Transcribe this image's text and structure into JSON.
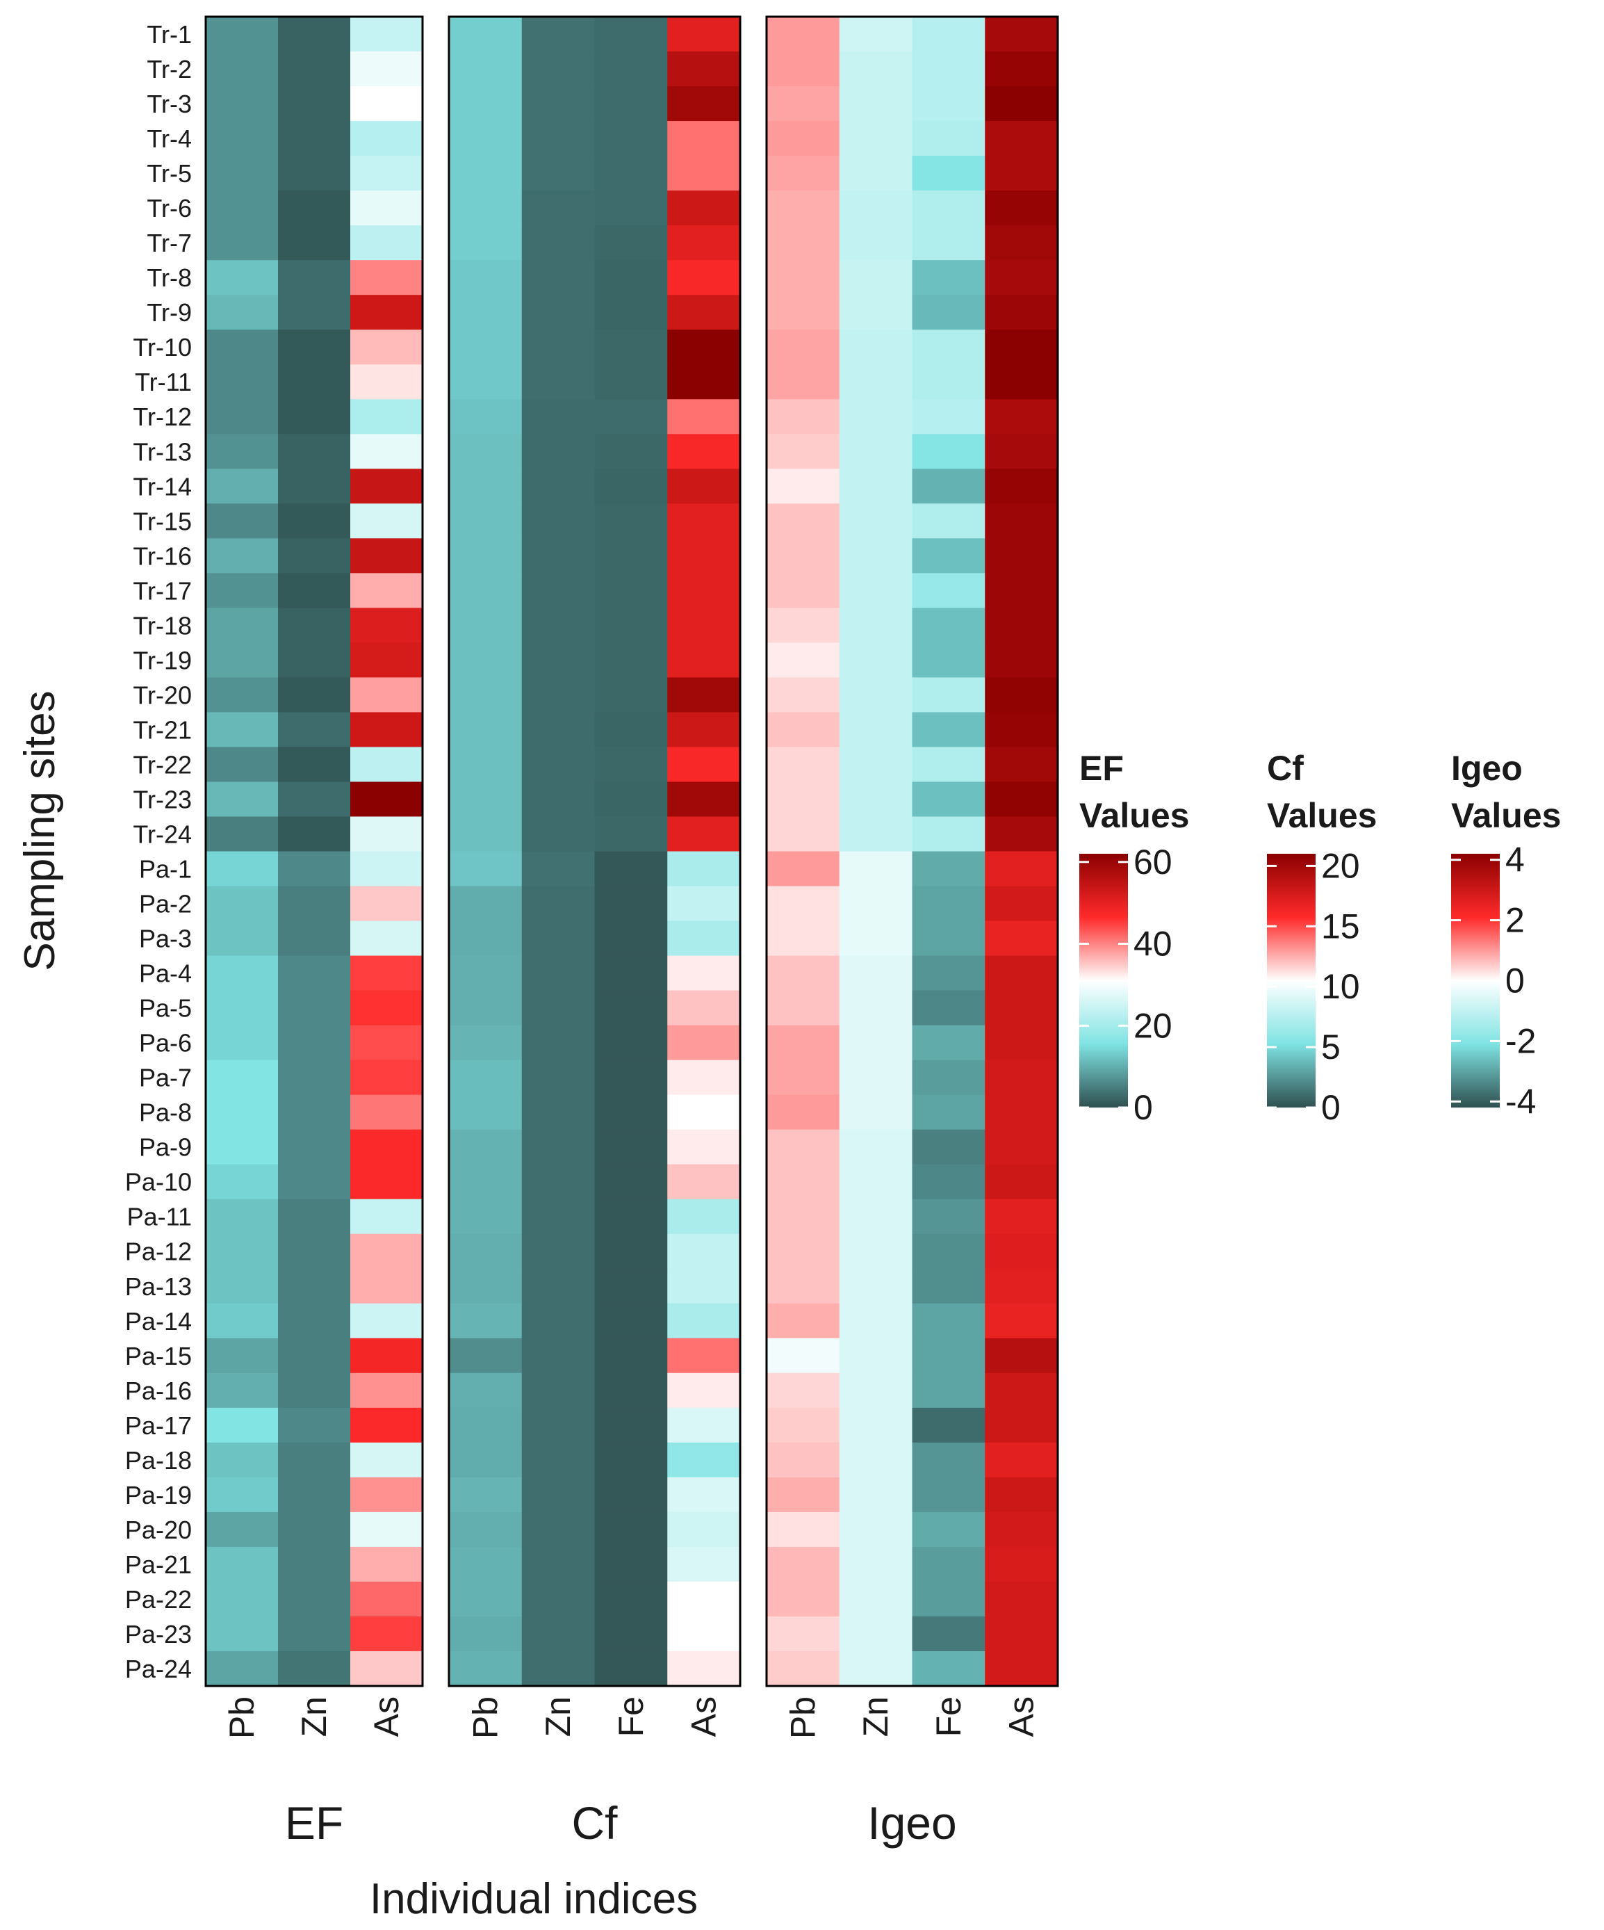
{
  "chart_data": {
    "type": "heatmap",
    "ylabel": "Sampling sites",
    "xlabel": "Individual indices",
    "rows": [
      "Tr-1",
      "Tr-2",
      "Tr-3",
      "Tr-4",
      "Tr-5",
      "Tr-6",
      "Tr-7",
      "Tr-8",
      "Tr-9",
      "Tr-10",
      "Tr-11",
      "Tr-12",
      "Tr-13",
      "Tr-14",
      "Tr-15",
      "Tr-16",
      "Tr-17",
      "Tr-18",
      "Tr-19",
      "Tr-20",
      "Tr-21",
      "Tr-22",
      "Tr-23",
      "Tr-24",
      "Pa-1",
      "Pa-2",
      "Pa-3",
      "Pa-4",
      "Pa-5",
      "Pa-6",
      "Pa-7",
      "Pa-8",
      "Pa-9",
      "Pa-10",
      "Pa-11",
      "Pa-12",
      "Pa-13",
      "Pa-14",
      "Pa-15",
      "Pa-16",
      "Pa-17",
      "Pa-18",
      "Pa-19",
      "Pa-20",
      "Pa-21",
      "Pa-22",
      "Pa-23",
      "Pa-24"
    ],
    "panels": [
      {
        "name": "EF",
        "legend_title": [
          "EF",
          "Values"
        ],
        "range": [
          0,
          62
        ],
        "ticks": [
          0,
          20,
          40,
          60
        ],
        "columns": [
          "Pb",
          "Zn",
          "As"
        ],
        "values": [
          [
            7,
            2,
            24
          ],
          [
            7,
            2,
            29
          ],
          [
            7,
            2,
            31
          ],
          [
            7,
            2,
            22
          ],
          [
            7,
            2,
            24
          ],
          [
            7,
            1,
            28
          ],
          [
            7,
            1,
            23
          ],
          [
            12,
            3,
            40
          ],
          [
            11,
            3,
            53
          ],
          [
            6,
            1,
            36
          ],
          [
            6,
            1,
            33
          ],
          [
            6,
            1,
            21
          ],
          [
            7,
            2,
            28
          ],
          [
            10,
            2,
            54
          ],
          [
            6,
            1,
            26
          ],
          [
            10,
            2,
            54
          ],
          [
            7,
            1,
            37
          ],
          [
            9,
            2,
            51
          ],
          [
            9,
            2,
            52
          ],
          [
            7,
            1,
            38
          ],
          [
            11,
            3,
            53
          ],
          [
            6,
            1,
            23
          ],
          [
            11,
            3,
            62
          ],
          [
            5,
            1,
            27
          ],
          [
            14,
            6,
            25
          ],
          [
            12,
            5,
            35
          ],
          [
            12,
            5,
            26
          ],
          [
            14,
            6,
            45
          ],
          [
            14,
            6,
            46
          ],
          [
            14,
            6,
            44
          ],
          [
            16,
            6,
            45
          ],
          [
            16,
            6,
            41
          ],
          [
            16,
            6,
            47
          ],
          [
            14,
            6,
            47
          ],
          [
            12,
            5,
            24
          ],
          [
            12,
            5,
            37
          ],
          [
            12,
            5,
            37
          ],
          [
            13,
            5,
            25
          ],
          [
            9,
            5,
            48
          ],
          [
            10,
            5,
            39
          ],
          [
            16,
            6,
            47
          ],
          [
            12,
            5,
            26
          ],
          [
            13,
            5,
            39
          ],
          [
            9,
            5,
            28
          ],
          [
            12,
            5,
            37
          ],
          [
            12,
            5,
            42
          ],
          [
            12,
            5,
            45
          ],
          [
            9,
            4,
            35
          ]
        ]
      },
      {
        "name": "Cf",
        "legend_title": [
          "Cf",
          "Values"
        ],
        "range": [
          0,
          21
        ],
        "ticks": [
          0,
          5,
          10,
          15,
          20
        ],
        "columns": [
          "Pb",
          "Zn",
          "Fe",
          "As"
        ],
        "values": [
          [
            4.5,
            1.2,
            1.0,
            17
          ],
          [
            4.5,
            1.2,
            1.0,
            19
          ],
          [
            4.5,
            1.2,
            1.0,
            20
          ],
          [
            4.5,
            1.2,
            1.0,
            14
          ],
          [
            4.5,
            1.2,
            1.0,
            14
          ],
          [
            4.5,
            1.1,
            1.0,
            18
          ],
          [
            4.5,
            1.1,
            0.9,
            17
          ],
          [
            4.3,
            1.1,
            0.8,
            16
          ],
          [
            4.3,
            1.1,
            0.8,
            18
          ],
          [
            4.3,
            1.1,
            0.9,
            21
          ],
          [
            4.3,
            1.1,
            0.9,
            21
          ],
          [
            4.1,
            1.0,
            1.0,
            14
          ],
          [
            4.0,
            1.0,
            0.9,
            16
          ],
          [
            4.0,
            1.0,
            0.8,
            18
          ],
          [
            4.0,
            1.0,
            0.9,
            17
          ],
          [
            4.0,
            1.0,
            0.9,
            17
          ],
          [
            4.0,
            1.0,
            0.9,
            17
          ],
          [
            4.0,
            1.0,
            0.9,
            17
          ],
          [
            4.0,
            1.0,
            0.9,
            17
          ],
          [
            4.0,
            1.0,
            0.9,
            20
          ],
          [
            4.0,
            1.0,
            0.8,
            18
          ],
          [
            4.0,
            1.0,
            0.9,
            16
          ],
          [
            4.0,
            1.0,
            0.8,
            20
          ],
          [
            4.0,
            1.0,
            0.9,
            17
          ],
          [
            4.2,
            1.2,
            0.3,
            7
          ],
          [
            3.3,
            1.1,
            0.3,
            8
          ],
          [
            3.3,
            1.1,
            0.3,
            7
          ],
          [
            3.4,
            1.1,
            0.3,
            11
          ],
          [
            3.4,
            1.1,
            0.3,
            12
          ],
          [
            3.6,
            1.1,
            0.3,
            13
          ],
          [
            3.9,
            1.1,
            0.3,
            11
          ],
          [
            3.9,
            1.1,
            0.3,
            10.5
          ],
          [
            3.5,
            1.1,
            0.3,
            11
          ],
          [
            3.5,
            1.1,
            0.3,
            12
          ],
          [
            3.5,
            1.1,
            0.3,
            7
          ],
          [
            3.4,
            1.1,
            0.3,
            8
          ],
          [
            3.4,
            1.1,
            0.3,
            8
          ],
          [
            3.6,
            1.1,
            0.3,
            7
          ],
          [
            2.2,
            1.1,
            0.3,
            14
          ],
          [
            3.4,
            1.1,
            0.3,
            11
          ],
          [
            3.3,
            1.1,
            0.3,
            9
          ],
          [
            3.3,
            1.1,
            0.3,
            6
          ],
          [
            3.6,
            1.1,
            0.3,
            9
          ],
          [
            3.4,
            1.1,
            0.3,
            8.5
          ],
          [
            3.5,
            1.1,
            0.3,
            9
          ],
          [
            3.5,
            1.1,
            0.3,
            10.5
          ],
          [
            3.3,
            1.1,
            0.3,
            10.5
          ],
          [
            3.5,
            1.1,
            0.3,
            11
          ]
        ]
      },
      {
        "name": "Igeo",
        "legend_title": [
          "Igeo",
          "Values"
        ],
        "range": [
          -4.2,
          4.2
        ],
        "ticks": [
          -4,
          -2,
          0,
          2,
          4
        ],
        "columns": [
          "Pb",
          "Zn",
          "Fe",
          "As"
        ],
        "values": [
          [
            1.0,
            -0.8,
            -1.2,
            3.7
          ],
          [
            1.0,
            -0.9,
            -1.2,
            4.0
          ],
          [
            0.9,
            -0.9,
            -1.2,
            4.2
          ],
          [
            1.0,
            -0.9,
            -1.3,
            3.6
          ],
          [
            0.9,
            -0.9,
            -2.0,
            3.6
          ],
          [
            0.8,
            -1.0,
            -1.3,
            4.0
          ],
          [
            0.8,
            -1.0,
            -1.3,
            3.8
          ],
          [
            0.8,
            -0.9,
            -2.6,
            3.7
          ],
          [
            0.8,
            -0.9,
            -2.7,
            3.9
          ],
          [
            0.9,
            -1.0,
            -1.3,
            4.2
          ],
          [
            0.9,
            -1.0,
            -1.3,
            4.2
          ],
          [
            0.6,
            -1.0,
            -1.2,
            3.6
          ],
          [
            0.5,
            -1.0,
            -2.0,
            3.7
          ],
          [
            0.2,
            -1.0,
            -2.8,
            4.0
          ],
          [
            0.6,
            -1.0,
            -1.3,
            3.9
          ],
          [
            0.6,
            -1.0,
            -2.6,
            3.9
          ],
          [
            0.6,
            -1.0,
            -1.7,
            3.9
          ],
          [
            0.4,
            -1.0,
            -2.6,
            3.9
          ],
          [
            0.2,
            -1.0,
            -2.6,
            3.9
          ],
          [
            0.4,
            -1.0,
            -1.3,
            4.1
          ],
          [
            0.6,
            -1.0,
            -2.6,
            4.0
          ],
          [
            0.4,
            -1.0,
            -1.3,
            3.8
          ],
          [
            0.4,
            -1.0,
            -2.6,
            4.1
          ],
          [
            0.4,
            -1.0,
            -1.3,
            3.7
          ],
          [
            1.0,
            -0.4,
            -2.9,
            2.6
          ],
          [
            0.3,
            -0.4,
            -3.0,
            2.9
          ],
          [
            0.3,
            -0.4,
            -3.0,
            2.5
          ],
          [
            0.6,
            -0.5,
            -3.2,
            3.0
          ],
          [
            0.6,
            -0.5,
            -3.4,
            3.0
          ],
          [
            0.9,
            -0.5,
            -2.9,
            3.0
          ],
          [
            0.9,
            -0.5,
            -3.1,
            2.9
          ],
          [
            1.0,
            -0.5,
            -3.0,
            2.9
          ],
          [
            0.6,
            -0.6,
            -3.5,
            2.9
          ],
          [
            0.6,
            -0.6,
            -3.4,
            3.0
          ],
          [
            0.6,
            -0.6,
            -3.2,
            2.6
          ],
          [
            0.6,
            -0.6,
            -3.3,
            2.7
          ],
          [
            0.6,
            -0.6,
            -3.3,
            2.6
          ],
          [
            0.8,
            -0.6,
            -3.0,
            2.5
          ],
          [
            -0.2,
            -0.6,
            -3.0,
            3.4
          ],
          [
            0.4,
            -0.6,
            -3.0,
            3.0
          ],
          [
            0.5,
            -0.6,
            -3.8,
            3.0
          ],
          [
            0.6,
            -0.6,
            -3.2,
            2.6
          ],
          [
            0.8,
            -0.6,
            -3.2,
            3.0
          ],
          [
            0.3,
            -0.6,
            -2.9,
            2.9
          ],
          [
            0.7,
            -0.6,
            -3.1,
            2.8
          ],
          [
            0.7,
            -0.6,
            -3.1,
            2.9
          ],
          [
            0.4,
            -0.6,
            -3.6,
            2.9
          ],
          [
            0.5,
            -0.6,
            -2.8,
            2.9
          ]
        ]
      }
    ],
    "colorscale": [
      "#2f4f4f",
      "#7fe3e3",
      "#ffffff",
      "#ff2a2a",
      "#8b0000"
    ]
  }
}
